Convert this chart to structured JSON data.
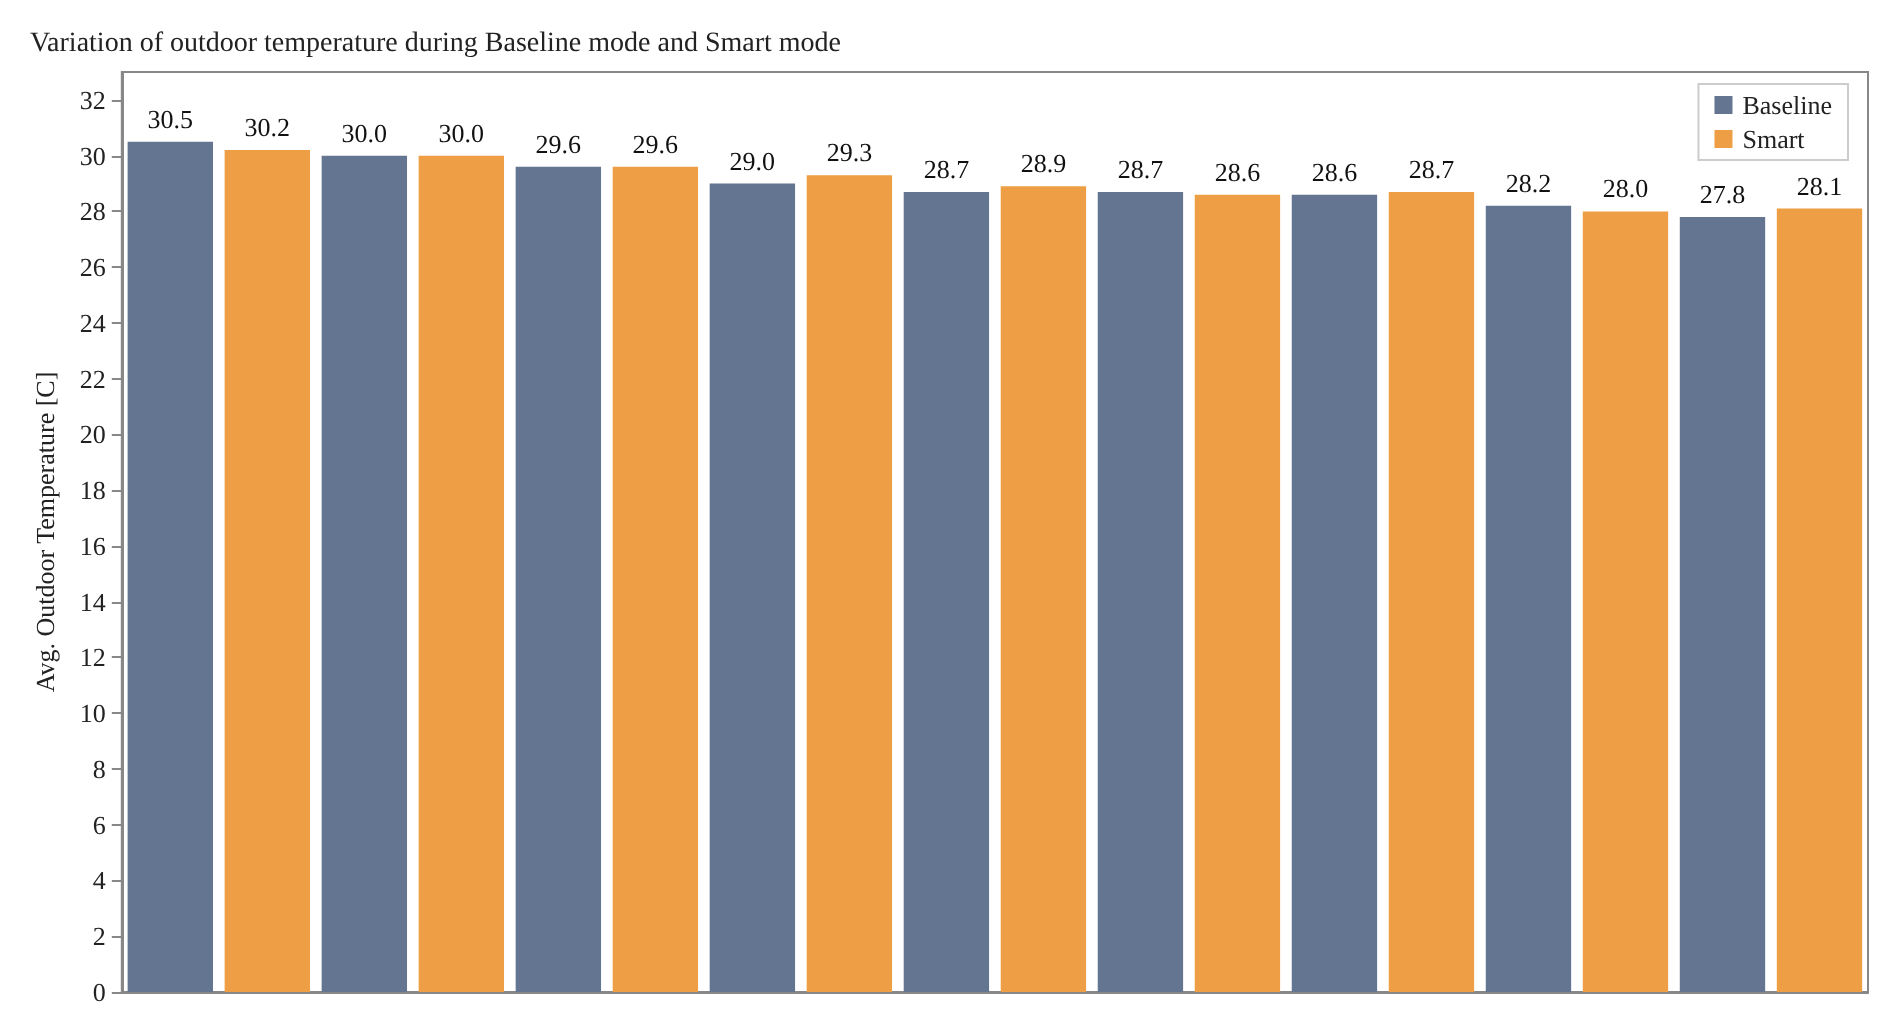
{
  "chart_data": {
    "type": "bar",
    "title": "Variation of outdoor temperature during Baseline mode and Smart mode",
    "ylabel": "Avg. Outdoor Temperature [C]",
    "categories": [
      null,
      null,
      null,
      null,
      null,
      null,
      null,
      null,
      null,
      null,
      null,
      null,
      null,
      null,
      null,
      null,
      null,
      null
    ],
    "series": [
      {
        "name": "Baseline",
        "color": "#637590",
        "values": [
          30.5,
          null,
          30.0,
          null,
          29.6,
          null,
          29.0,
          null,
          28.7,
          null,
          28.7,
          null,
          28.6,
          null,
          28.2,
          null,
          27.8,
          null
        ],
        "value_labels": [
          "30.5",
          null,
          "30.0",
          null,
          "29.6",
          null,
          "29.0",
          null,
          "28.7",
          null,
          "28.7",
          null,
          "28.6",
          null,
          "28.2",
          null,
          "27.8",
          null
        ]
      },
      {
        "name": "Smart",
        "color": "#ee9f45",
        "values": [
          null,
          30.2,
          null,
          30.0,
          null,
          29.6,
          null,
          29.3,
          null,
          28.9,
          null,
          28.6,
          null,
          28.7,
          null,
          28.0,
          null,
          28.1
        ],
        "value_labels": [
          null,
          "30.2",
          null,
          "30.0",
          null,
          "29.6",
          null,
          "29.3",
          null,
          "28.9",
          null,
          "28.6",
          null,
          "28.7",
          null,
          "28.0",
          null,
          "28.1"
        ]
      }
    ],
    "ylim": [
      0,
      33
    ],
    "yticks": [
      0,
      2,
      4,
      6,
      8,
      10,
      12,
      14,
      16,
      18,
      20,
      22,
      24,
      26,
      28,
      30,
      32
    ],
    "grid": false,
    "legend": "top right"
  }
}
